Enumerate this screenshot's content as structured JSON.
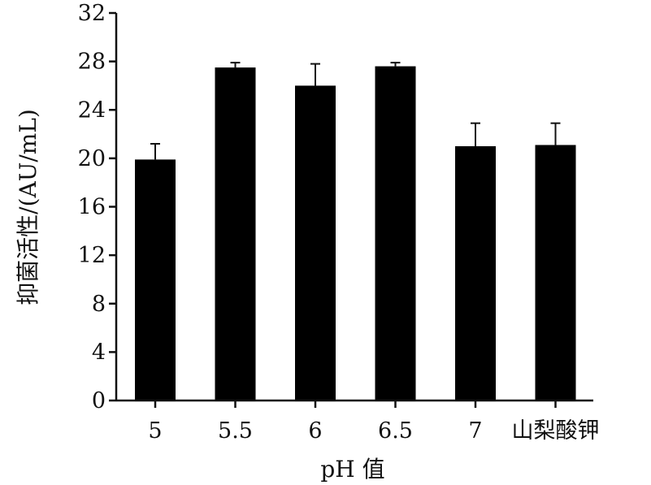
{
  "chart_data": {
    "type": "bar",
    "title": "",
    "xlabel": "pH 值",
    "ylabel": "抑菌活性/(AU/mL)",
    "categories": [
      "5",
      "5.5",
      "6",
      "6.5",
      "7",
      "山梨酸钾"
    ],
    "values": [
      19.9,
      27.5,
      26.0,
      27.6,
      21.0,
      21.1
    ],
    "errors": [
      1.3,
      0.4,
      1.8,
      0.3,
      1.9,
      1.8
    ],
    "ylim": [
      0,
      32
    ],
    "yticks": [
      0,
      4,
      8,
      12,
      16,
      20,
      24,
      28,
      32
    ],
    "grid": false,
    "bar_color": "#000000"
  }
}
